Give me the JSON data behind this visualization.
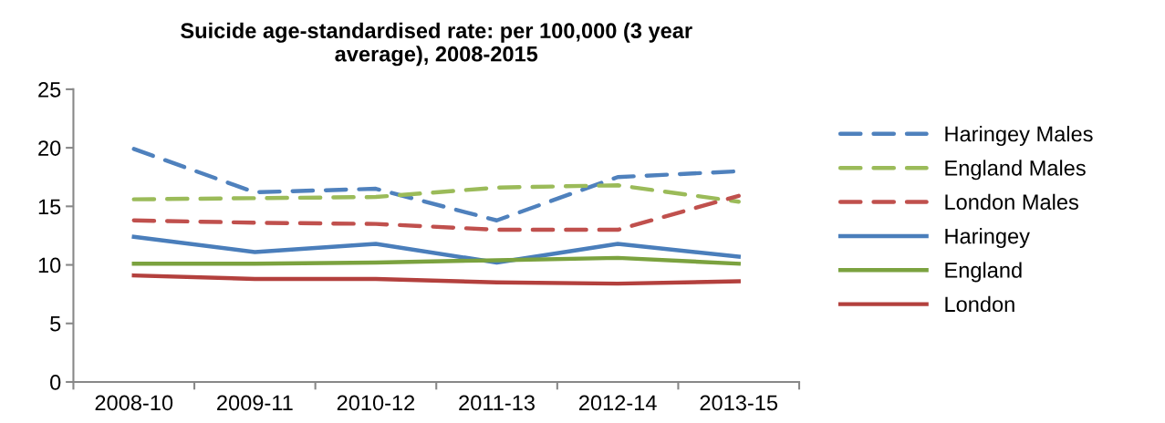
{
  "chart_data": {
    "type": "line",
    "title": "Suicide age-standardised rate: per 100,000 (3 year\naverage), 2008-2015",
    "categories": [
      "2008-10",
      "2009-11",
      "2010-12",
      "2011-13",
      "2012-14",
      "2013-15"
    ],
    "series": [
      {
        "name": "Haringey Males",
        "color": "#4f81bd",
        "line_style": "dashed",
        "values": [
          19.9,
          16.2,
          16.5,
          13.8,
          17.5,
          18.0
        ]
      },
      {
        "name": "England Males",
        "color": "#9bbb59",
        "line_style": "dashed",
        "values": [
          15.6,
          15.7,
          15.8,
          16.6,
          16.8,
          15.4
        ]
      },
      {
        "name": "London Males",
        "color": "#c0504d",
        "line_style": "dashed",
        "values": [
          13.8,
          13.6,
          13.5,
          13.0,
          13.0,
          15.9
        ]
      },
      {
        "name": "Haringey",
        "color": "#4a7ebb",
        "line_style": "solid",
        "values": [
          12.4,
          11.1,
          11.8,
          10.2,
          11.8,
          10.7
        ]
      },
      {
        "name": "England",
        "color": "#7ba23f",
        "line_style": "solid",
        "values": [
          10.1,
          10.1,
          10.2,
          10.4,
          10.6,
          10.1
        ]
      },
      {
        "name": "London",
        "color": "#b3403d",
        "line_style": "solid",
        "values": [
          9.1,
          8.8,
          8.8,
          8.5,
          8.4,
          8.6
        ]
      }
    ],
    "ylim": [
      0,
      25
    ],
    "yticks": [
      0,
      5,
      10,
      15,
      20,
      25
    ],
    "grid": false,
    "legend": "right",
    "marker": "none"
  }
}
